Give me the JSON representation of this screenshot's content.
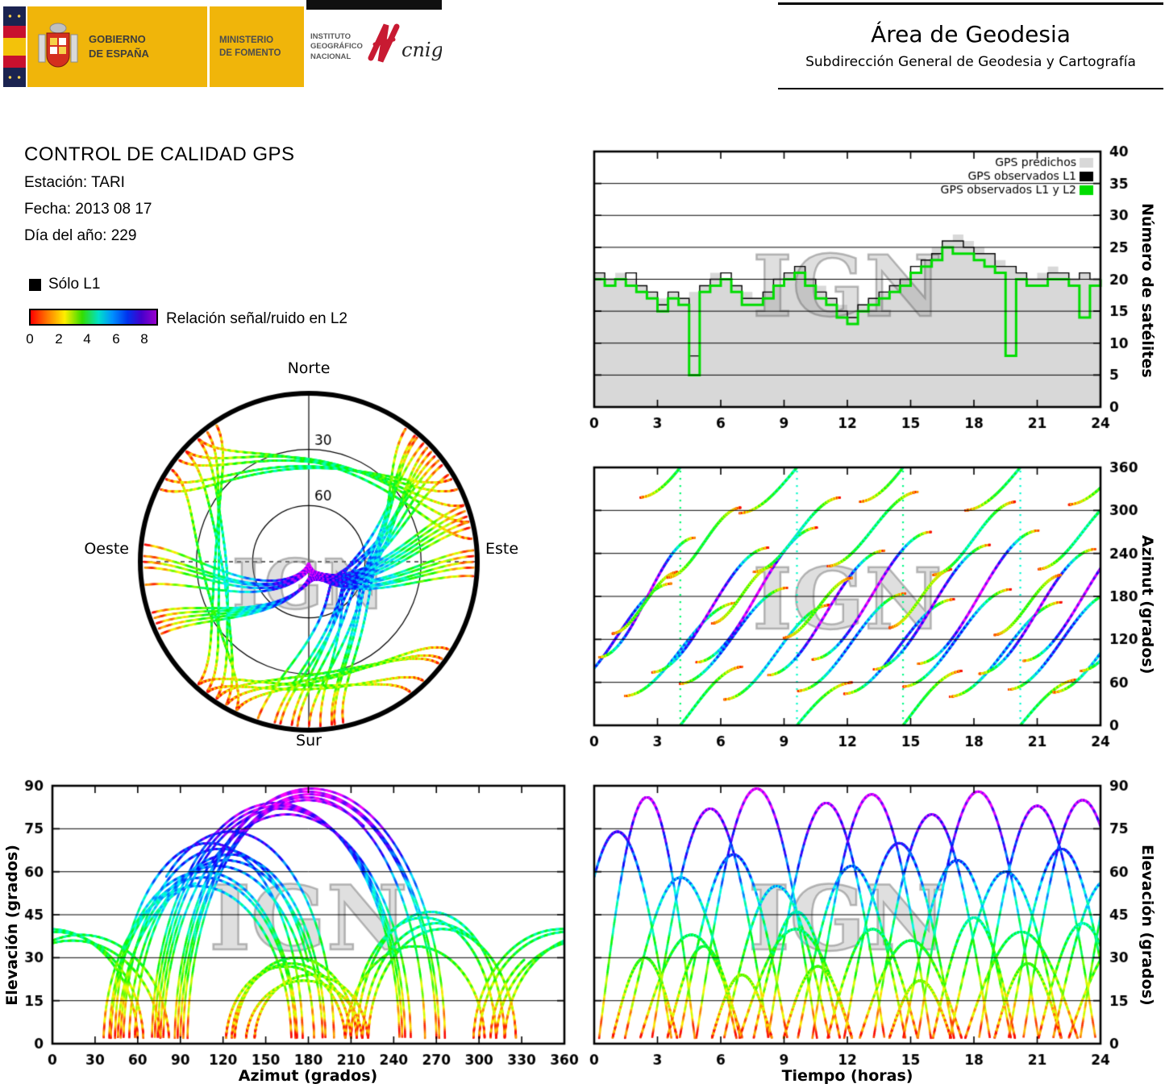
{
  "header": {
    "gobierno_line1": "GOBIERNO",
    "gobierno_line2": "DE ESPAÑA",
    "ministerio_line1": "MINISTERIO",
    "ministerio_line2": "DE FOMENTO",
    "ign_line1": "INSTITUTO",
    "ign_line2": "GEOGRÁFICO",
    "ign_line3": "NACIONAL",
    "cnig": "cnig",
    "area_title": "Área de Geodesia",
    "area_subtitle": "Subdirección General de Geodesia y Cartografía"
  },
  "info": {
    "title": "CONTROL DE CALIDAD GPS",
    "station_label": "Estación: TARI",
    "date_label": "Fecha: 2013 08 17",
    "doy_label": "Día del año: 229"
  },
  "legend": {
    "solo_l1": "Sólo L1",
    "snr_label": "Relación señal/ruido en L2",
    "snr_ticks": [
      "0",
      "2",
      "4",
      "6",
      "8"
    ],
    "snr_range": [
      0,
      9
    ]
  },
  "watermark": "IGN",
  "chart_data": [
    {
      "id": "satellite_count",
      "type": "line",
      "xlabel": "",
      "ylabel": "Número de satélites",
      "xlim": [
        0,
        24
      ],
      "ylim": [
        0,
        40
      ],
      "xticks": [
        0,
        3,
        6,
        9,
        12,
        15,
        18,
        21,
        24
      ],
      "yticks": [
        0,
        5,
        10,
        15,
        20,
        25,
        30,
        35,
        40
      ],
      "grid_y": [
        5,
        10,
        15,
        20,
        25,
        30,
        35
      ],
      "x_step": 0.5,
      "legend_position": "top-right",
      "series": [
        {
          "name": "GPS predichos",
          "color": "#d8d8d8",
          "style": "filled-steps",
          "values": [
            21,
            20,
            21,
            20,
            19,
            18,
            17,
            18,
            17,
            18,
            19,
            21,
            20,
            19,
            18,
            17,
            18,
            19,
            21,
            22,
            20,
            19,
            17,
            16,
            15,
            16,
            17,
            18,
            19,
            20,
            21,
            23,
            25,
            26,
            27,
            26,
            25,
            24,
            23,
            22,
            21,
            20,
            21,
            22,
            21,
            20,
            21,
            20,
            21
          ]
        },
        {
          "name": "GPS observados L1",
          "color": "#000000",
          "style": "steps",
          "values": [
            21,
            20,
            20,
            21,
            19,
            18,
            16,
            18,
            17,
            8,
            19,
            20,
            21,
            19,
            17,
            17,
            18,
            20,
            21,
            22,
            20,
            18,
            17,
            15,
            14,
            16,
            17,
            18,
            19,
            20,
            22,
            23,
            24,
            26,
            26,
            25,
            24,
            24,
            22,
            22,
            21,
            20,
            20,
            21,
            21,
            20,
            21,
            20,
            20
          ]
        },
        {
          "name": "GPS observados L1 y L2",
          "color": "#00dd00",
          "style": "thick-steps",
          "values": [
            20,
            19,
            20,
            19,
            18,
            17,
            15,
            17,
            16,
            5,
            18,
            19,
            20,
            18,
            16,
            16,
            17,
            19,
            20,
            21,
            19,
            17,
            16,
            14,
            13,
            15,
            16,
            17,
            18,
            19,
            21,
            22,
            23,
            25,
            24,
            24,
            23,
            22,
            21,
            8,
            20,
            19,
            19,
            20,
            20,
            19,
            14,
            19,
            20
          ]
        }
      ]
    },
    {
      "id": "skyplot",
      "type": "scatter",
      "projection": "polar",
      "north": "Norte",
      "south": "Sur",
      "east": "Este",
      "west": "Oeste",
      "ring_labels": [
        "30",
        "60"
      ],
      "elevation_rings": [
        30,
        60
      ],
      "color_scale": "signal_to_noise_L2_0_to_9",
      "passes_fields": [
        "t0_hours",
        "duration_hours",
        "azimuth_rise_deg",
        "azimuth_set_deg",
        "max_elevation_deg"
      ],
      "passes": [
        [
          -1.5,
          5.2,
          52,
          198,
          74
        ],
        [
          0.2,
          4.6,
          95,
          262,
          86
        ],
        [
          0.8,
          3.2,
          128,
          214,
          30
        ],
        [
          1.4,
          5.4,
          41,
          171,
          58
        ],
        [
          2.1,
          5.0,
          318,
          442,
          38
        ],
        [
          2.7,
          5.6,
          74,
          248,
          82
        ],
        [
          3.4,
          3.6,
          206,
          304,
          34
        ],
        [
          4.0,
          5.2,
          58,
          192,
          66
        ],
        [
          4.8,
          5.8,
          88,
          276,
          89
        ],
        [
          5.5,
          3.0,
          142,
          222,
          24
        ],
        [
          6.1,
          5.1,
          36,
          168,
          55
        ],
        [
          6.8,
          5.5,
          296,
          420,
          40
        ],
        [
          7.5,
          4.2,
          214,
          318,
          46
        ],
        [
          8.2,
          5.6,
          70,
          244,
          84
        ],
        [
          8.9,
          3.4,
          122,
          206,
          27
        ],
        [
          9.6,
          5.2,
          48,
          184,
          62
        ],
        [
          10.3,
          5.7,
          92,
          270,
          87
        ],
        [
          11.0,
          4.4,
          222,
          326,
          40
        ],
        [
          11.8,
          5.3,
          44,
          176,
          70
        ],
        [
          12.5,
          5.0,
          312,
          436,
          36
        ],
        [
          13.2,
          5.6,
          78,
          252,
          80
        ],
        [
          13.9,
          3.1,
          136,
          218,
          22
        ],
        [
          14.6,
          5.2,
          54,
          190,
          64
        ],
        [
          15.3,
          5.8,
          86,
          272,
          88
        ],
        [
          16.0,
          4.0,
          210,
          312,
          44
        ],
        [
          16.8,
          5.4,
          40,
          172,
          60
        ],
        [
          17.5,
          5.5,
          300,
          424,
          39
        ],
        [
          18.2,
          5.6,
          72,
          246,
          83
        ],
        [
          18.9,
          3.3,
          126,
          210,
          28
        ],
        [
          19.6,
          5.1,
          50,
          186,
          68
        ],
        [
          20.3,
          5.7,
          90,
          268,
          85
        ],
        [
          21.0,
          4.3,
          218,
          322,
          42
        ],
        [
          21.7,
          5.2,
          46,
          180,
          57
        ],
        [
          22.4,
          5.5,
          308,
          430,
          37
        ],
        [
          23.0,
          5.4,
          76,
          250,
          81
        ]
      ]
    },
    {
      "id": "azimuth_vs_time",
      "type": "scatter",
      "xlabel": "",
      "ylabel": "Azimut (grados)",
      "xlim": [
        0,
        24
      ],
      "ylim": [
        0,
        360
      ],
      "xticks": [
        0,
        3,
        6,
        9,
        12,
        15,
        18,
        21,
        24
      ],
      "yticks": [
        0,
        60,
        120,
        180,
        240,
        300,
        360
      ],
      "grid_y": [
        60,
        120,
        180,
        240,
        300
      ],
      "source": "skyplot.passes"
    },
    {
      "id": "elevation_vs_azimuth",
      "type": "scatter",
      "xlabel": "Azimut (grados)",
      "ylabel": "Elevación (grados)",
      "xlim": [
        0,
        360
      ],
      "ylim": [
        0,
        90
      ],
      "xticks": [
        0,
        30,
        60,
        90,
        120,
        150,
        180,
        210,
        240,
        270,
        300,
        330,
        360
      ],
      "yticks": [
        0,
        15,
        30,
        45,
        60,
        75,
        90
      ],
      "grid_y": [
        15,
        30,
        45,
        60,
        75
      ],
      "source": "skyplot.passes"
    },
    {
      "id": "elevation_vs_time",
      "type": "scatter",
      "xlabel": "Tiempo (horas)",
      "ylabel": "Elevación (grados)",
      "xlim": [
        0,
        24
      ],
      "ylim": [
        0,
        90
      ],
      "xticks": [
        0,
        3,
        6,
        9,
        12,
        15,
        18,
        21,
        24
      ],
      "yticks": [
        0,
        15,
        30,
        45,
        60,
        75,
        90
      ],
      "grid_y": [
        15,
        30,
        45,
        60,
        75
      ],
      "source": "skyplot.passes"
    }
  ]
}
